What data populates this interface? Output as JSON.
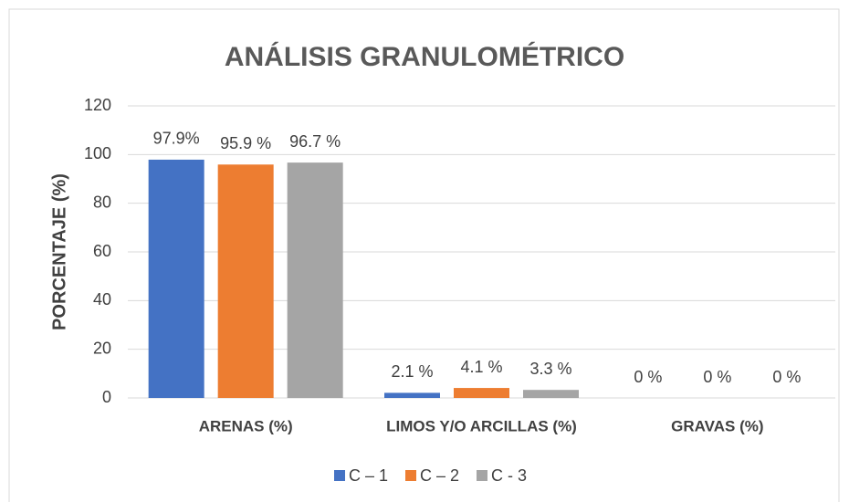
{
  "chart_data": {
    "type": "bar",
    "title": "ANÁLISIS GRANULOMÉTRICO",
    "y_label": "PORCENTAJE (%)",
    "categories": [
      "ARENAS (%)",
      "LIMOS Y/O ARCILLAS (%)",
      "GRAVAS (%)"
    ],
    "series": [
      {
        "name": "C – 1",
        "color": "#4472c4",
        "values": [
          97.9,
          2.1,
          0
        ],
        "value_labels": [
          "97.9%",
          "2.1 %",
          "0 %"
        ]
      },
      {
        "name": "C – 2",
        "color": "#ed7d31",
        "values": [
          95.9,
          4.1,
          0
        ],
        "value_labels": [
          "95.9 %",
          "4.1 %",
          "0 %"
        ]
      },
      {
        "name": "C - 3",
        "color": "#a5a5a5",
        "values": [
          96.7,
          3.3,
          0
        ],
        "value_labels": [
          "96.7 %",
          "3.3 %",
          "0 %"
        ]
      }
    ],
    "ylim": [
      0,
      120
    ],
    "yticks": [
      0,
      20,
      40,
      60,
      80,
      100,
      120
    ],
    "grid": true,
    "legend": "bottom"
  }
}
